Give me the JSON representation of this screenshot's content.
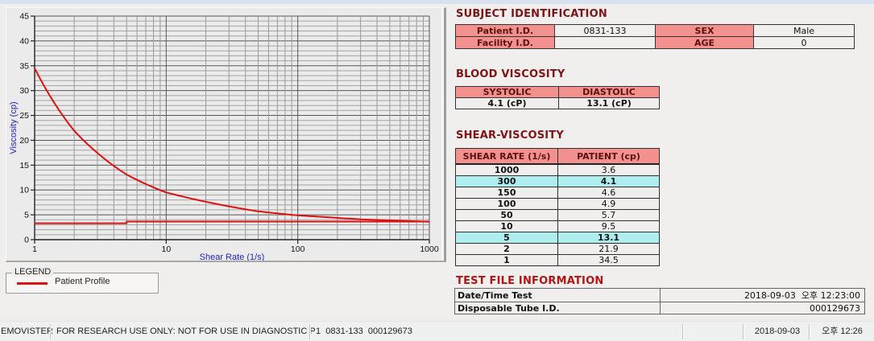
{
  "window": {
    "bg": "#f0efee",
    "top_strip_color": "#d9e3f0"
  },
  "chart_data": {
    "type": "line",
    "title": "",
    "xlabel": "Shear Rate (1/s)",
    "ylabel": "Viscosity (cp)",
    "x_scale": "log",
    "xlim": [
      1,
      1000
    ],
    "ylim": [
      0,
      45
    ],
    "x_ticks": [
      1,
      10,
      100,
      1000
    ],
    "y_tick_step": 5,
    "grid": true,
    "axis_title_color": "#2222cc",
    "legend_position": "below-left",
    "series": [
      {
        "name": "Patient Profile",
        "color": "#dd1111",
        "smooth": true,
        "x": [
          1,
          2,
          5,
          10,
          50,
          100,
          150,
          300,
          1000
        ],
        "y": [
          34.5,
          21.9,
          13.1,
          9.5,
          5.7,
          4.9,
          4.6,
          4.1,
          3.6
        ]
      },
      {
        "name": "baseline-return-line",
        "color": "#dd1111",
        "smooth": false,
        "x": [
          1,
          5,
          5,
          1000
        ],
        "y": [
          3.3,
          3.3,
          3.65,
          3.65
        ]
      }
    ]
  },
  "legend": {
    "box_title": "LEGEND",
    "entries": [
      {
        "label": "Patient Profile",
        "color": "#dd1111"
      }
    ]
  },
  "subject": {
    "title": "SUBJECT IDENTIFICATION",
    "rows": [
      [
        {
          "t": "Patient I.D."
        },
        {
          "t": "0831-133"
        },
        {
          "t": "SEX"
        },
        {
          "t": "Male"
        }
      ],
      [
        {
          "t": "Facility I.D."
        },
        {
          "t": ""
        },
        {
          "t": "AGE"
        },
        {
          "t": "0"
        }
      ]
    ]
  },
  "blood": {
    "title": "BLOOD VISCOSITY",
    "headers": [
      "SYSTOLIC",
      "DIASTOLIC"
    ],
    "values": [
      "4.1 (cP)",
      "13.1 (cP)"
    ]
  },
  "shear": {
    "title": "SHEAR-VISCOSITY",
    "headers": [
      "SHEAR RATE (1/s)",
      "PATIENT (cp)"
    ],
    "rows": [
      {
        "rate": "1000",
        "value": "3.6",
        "highlight": false
      },
      {
        "rate": "300",
        "value": "4.1",
        "highlight": true
      },
      {
        "rate": "150",
        "value": "4.6",
        "highlight": false
      },
      {
        "rate": "100",
        "value": "4.9",
        "highlight": false
      },
      {
        "rate": "50",
        "value": "5.7",
        "highlight": false
      },
      {
        "rate": "10",
        "value": "9.5",
        "highlight": false
      },
      {
        "rate": "5",
        "value": "13.1",
        "highlight": true
      },
      {
        "rate": "2",
        "value": "21.9",
        "highlight": false
      },
      {
        "rate": "1",
        "value": "34.5",
        "highlight": false
      }
    ]
  },
  "testfile": {
    "title": "TEST FILE INFORMATION",
    "rows": [
      {
        "label": "Date/Time Test",
        "value": "2018-09-03  오후 12:23:00"
      },
      {
        "label": "Disposable Tube I.D.",
        "value": "000129673"
      }
    ]
  },
  "status_bar": {
    "panels": [
      {
        "text": "EMOVISTER"
      },
      {
        "text": "FOR RESEARCH USE ONLY: NOT FOR USE IN DIAGNOSTIC PROCEDURES"
      },
      {
        "text": "1  0831-133  000129673"
      },
      {
        "text": ""
      },
      {
        "text": "2018-09-03",
        "align": "center"
      },
      {
        "text": "오후 12:26",
        "align": "center"
      }
    ]
  },
  "colors": {
    "header_pink": "#f2918e",
    "header_text": "#5c1010",
    "highlight_cyan": "#aeeeee",
    "section_title": "#7f1416",
    "test_title": "#b01414",
    "curve_red": "#dd1111",
    "axis_blue": "#2222cc"
  }
}
